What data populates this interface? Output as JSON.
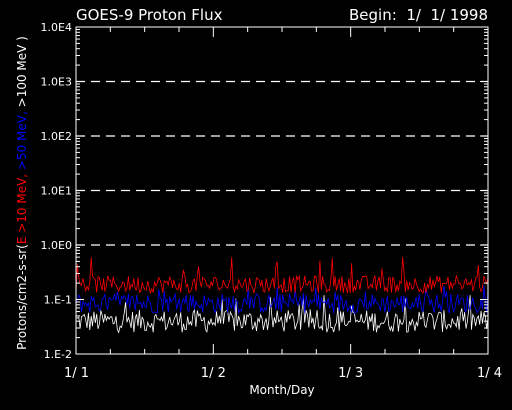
{
  "header": {
    "title": "GOES-9 Proton Flux",
    "begin_label": "Begin:  1/  1/ 1998"
  },
  "chart_data": {
    "type": "line",
    "title": "GOES-9 Proton Flux",
    "xlabel": "Month/Day",
    "ylabel_parts": [
      {
        "text": "Protons/cm2-s-sr(",
        "color": "#ffffff"
      },
      {
        "text": "E >10 MeV, ",
        "color": "#ff0000"
      },
      {
        "text": ">50 MeV, ",
        "color": "#0000ff"
      },
      {
        "text": ">100 MeV )",
        "color": "#ffffff"
      }
    ],
    "x_ticks": [
      " 1/  1",
      " 1/  2",
      " 1/  3",
      " 1/  4"
    ],
    "x_range_days": [
      0,
      3
    ],
    "y_scale": "log",
    "y_range": [
      0.01,
      10000
    ],
    "y_ticks": [
      {
        "value": 0.01,
        "label": "1.E-2"
      },
      {
        "value": 0.1,
        "label": "1.E-1"
      },
      {
        "value": 1,
        "label": "1.0E0"
      },
      {
        "value": 10,
        "label": "1.0E1"
      },
      {
        "value": 100,
        "label": "1.0E2"
      },
      {
        "value": 1000,
        "label": "1.0E3"
      },
      {
        "value": 10000,
        "label": "1.0E4"
      }
    ],
    "grid": {
      "dashed_at": [
        1,
        10,
        100,
        1000
      ]
    },
    "series": [
      {
        "color": "#ff0000",
        "low": 0.12,
        "mid": 0.19,
        "high": 0.6
      },
      {
        "color": "#0000ff",
        "low": 0.05,
        "mid": 0.085,
        "high": 0.18
      },
      {
        "color": "#ffffff",
        "low": 0.022,
        "mid": 0.04,
        "high": 0.12
      }
    ],
    "samples": 300
  }
}
